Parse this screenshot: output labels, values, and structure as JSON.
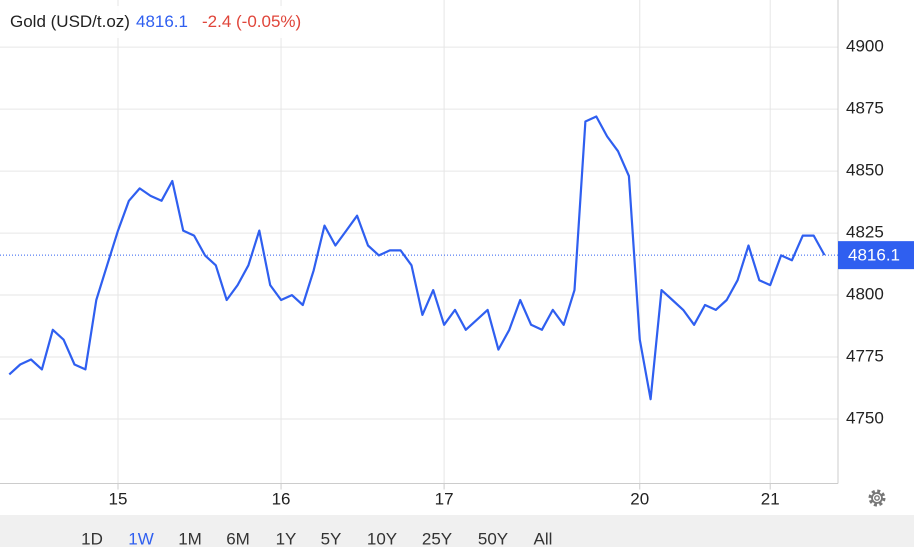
{
  "chart_data": {
    "type": "line",
    "title": "Gold (USD/t.oz)",
    "last_value": 4816.1,
    "change_label": "-2.4 (-0.05%)",
    "categories": [
      null,
      null,
      null,
      null,
      null,
      null,
      null,
      null,
      null,
      null,
      "15",
      null,
      null,
      null,
      null,
      null,
      null,
      null,
      null,
      null,
      null,
      null,
      null,
      null,
      null,
      "16",
      null,
      null,
      null,
      null,
      null,
      null,
      null,
      null,
      null,
      null,
      null,
      null,
      null,
      null,
      "17",
      null,
      null,
      null,
      null,
      null,
      null,
      null,
      null,
      null,
      null,
      null,
      null,
      null,
      null,
      null,
      null,
      null,
      "20",
      null,
      null,
      null,
      null,
      null,
      null,
      null,
      null,
      null,
      null,
      null,
      "21",
      null,
      null,
      null,
      null,
      null
    ],
    "series": [
      {
        "color": "#2f5ff0",
        "values": [
          4768,
          4772,
          4774,
          4770,
          4786,
          4782,
          4772,
          4770,
          4798,
          4812,
          4826,
          4838,
          4843,
          4840,
          4838,
          4846,
          4826,
          4824,
          4816,
          4812,
          4798,
          4804,
          4812,
          4826,
          4804,
          4798,
          4800,
          4796,
          4810,
          4828,
          4820,
          4826,
          4832,
          4820,
          4816,
          4818,
          4818,
          4812,
          4792,
          4802,
          4788,
          4794,
          4786,
          4790,
          4794,
          4778,
          4786,
          4798,
          4788,
          4786,
          4794,
          4788,
          4802,
          4870,
          4872,
          4864,
          4858,
          4848,
          4782,
          4758,
          4802,
          4798,
          4794,
          4788,
          4796,
          4794,
          4798,
          4806,
          4820,
          4806,
          4804,
          4816,
          4814,
          4824,
          4824,
          4816.1
        ]
      }
    ],
    "ylim": [
      4724,
      4919
    ],
    "yticks": [
      4750,
      4775,
      4800,
      4825,
      4850,
      4875,
      4900
    ],
    "grid": true
  },
  "range_buttons": [
    "1D",
    "1W",
    "1M",
    "6M",
    "1Y",
    "5Y",
    "10Y",
    "25Y",
    "50Y",
    "All"
  ],
  "active_range": 1
}
